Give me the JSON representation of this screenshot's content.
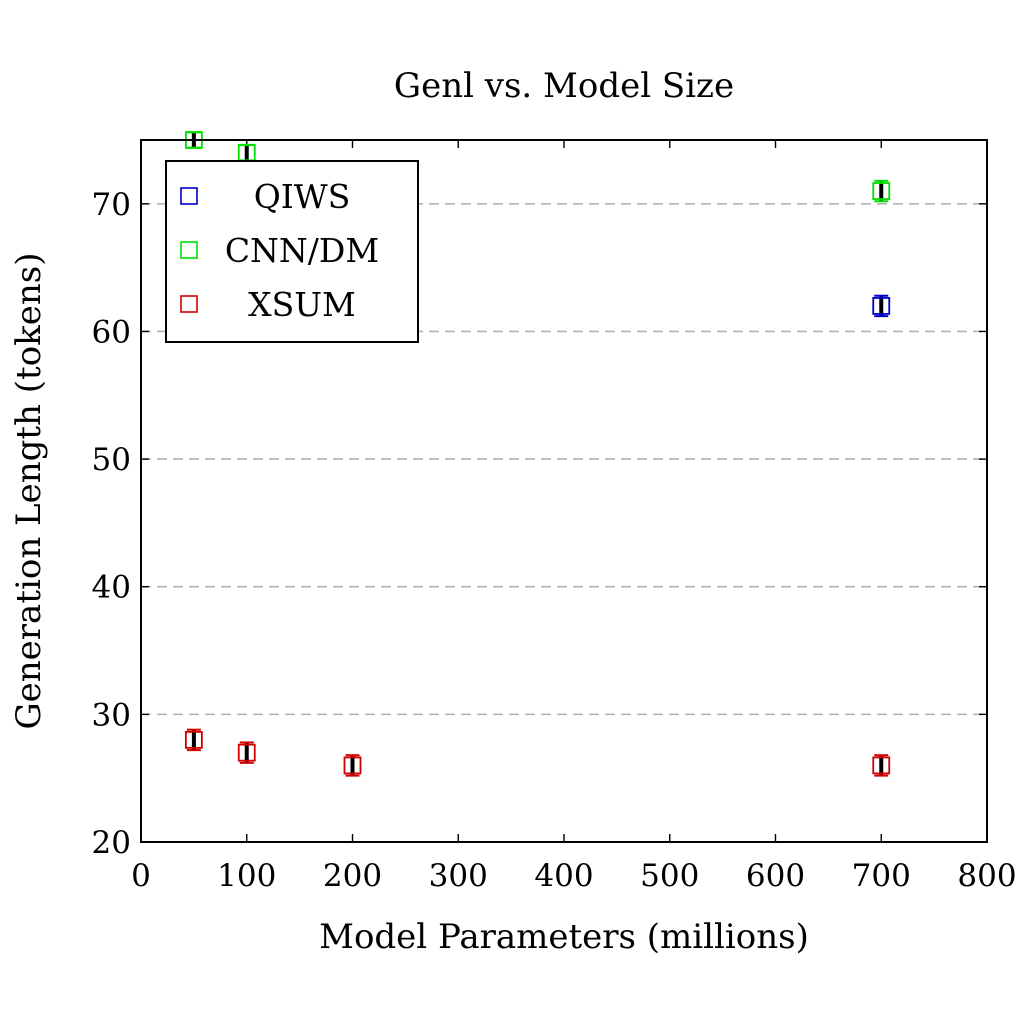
{
  "chart_data": {
    "type": "scatter",
    "title": "Genl vs. Model Size",
    "xlabel": "Model Parameters (millions)",
    "ylabel": "Generation Length (tokens)",
    "xlim": [
      0,
      800
    ],
    "ylim": [
      20,
      75
    ],
    "xticks": [
      0,
      100,
      200,
      300,
      400,
      500,
      600,
      700,
      800
    ],
    "yticks": [
      20,
      30,
      40,
      50,
      60,
      70
    ],
    "grid": "y-major-dashed",
    "legend_position": "top-left",
    "series": [
      {
        "name": "QIWS",
        "color": "#0000c8",
        "marker": "square-open",
        "points": [
          {
            "x": 700,
            "y": 62,
            "err": 0.8
          }
        ]
      },
      {
        "name": "CNN/DM",
        "color": "#00e000",
        "marker": "square-open",
        "points": [
          {
            "x": 50,
            "y": 75,
            "err": 0.6
          },
          {
            "x": 100,
            "y": 74,
            "err": 0.6
          },
          {
            "x": 700,
            "y": 71,
            "err": 0.8
          }
        ]
      },
      {
        "name": "XSUM",
        "color": "#d00000",
        "marker": "square-open",
        "points": [
          {
            "x": 50,
            "y": 28,
            "err": 0.8
          },
          {
            "x": 100,
            "y": 27,
            "err": 0.8
          },
          {
            "x": 200,
            "y": 26,
            "err": 0.8
          },
          {
            "x": 700,
            "y": 26,
            "err": 0.8
          }
        ]
      }
    ]
  }
}
